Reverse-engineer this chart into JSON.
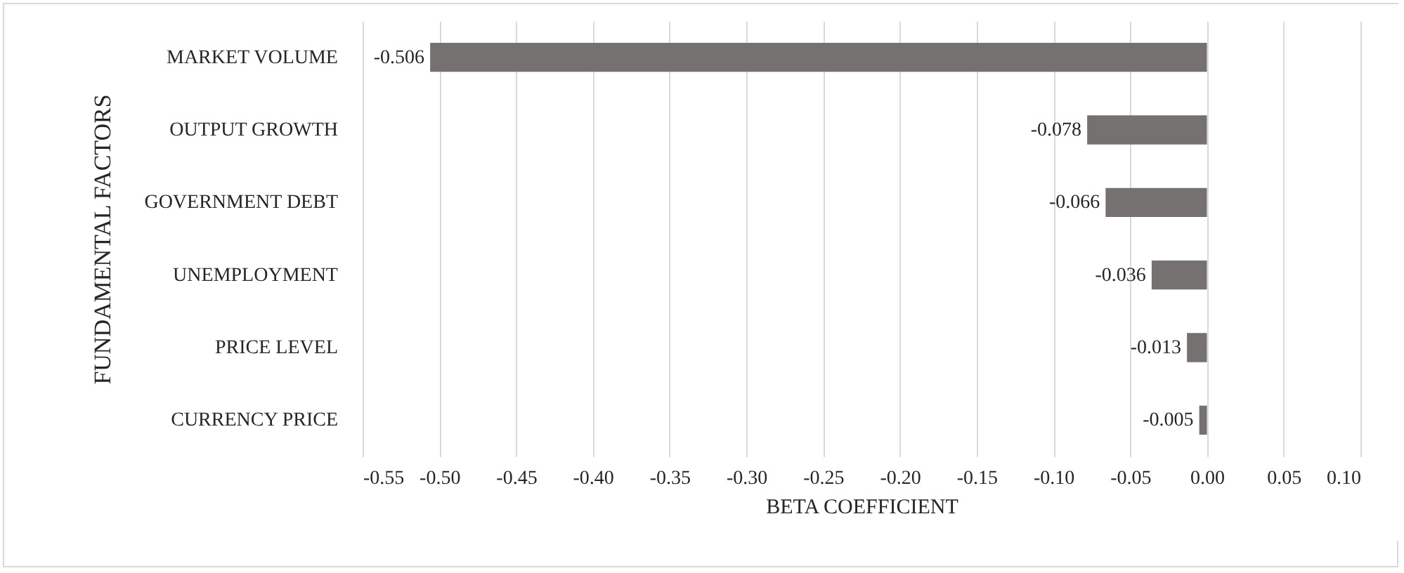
{
  "chart_data": {
    "type": "bar",
    "orientation": "horizontal",
    "xlabel": "BETA COEFFICIENT",
    "ylabel": "FUNDAMENTAL FACTORS",
    "categories": [
      "MARKET VOLUME",
      "OUTPUT GROWTH",
      "GOVERNMENT DEBT",
      "UNEMPLOYMENT",
      "PRICE LEVEL",
      "CURRENCY PRICE"
    ],
    "values": [
      -0.506,
      -0.078,
      -0.066,
      -0.036,
      -0.013,
      -0.005
    ],
    "color": "#767171",
    "data_labels": true,
    "grid": "x",
    "xlim": [
      -0.55,
      0.1
    ],
    "xticks": [
      {
        "value": -0.55,
        "label": "-0.55"
      },
      {
        "value": -0.5,
        "label": "-0.50"
      },
      {
        "value": -0.45,
        "label": "-0.45"
      },
      {
        "value": -0.4,
        "label": "-0.40"
      },
      {
        "value": -0.35,
        "label": "-0.35"
      },
      {
        "value": -0.3,
        "label": "-0.30"
      },
      {
        "value": -0.25,
        "label": "-0.25"
      },
      {
        "value": -0.2,
        "label": "-0.20"
      },
      {
        "value": -0.15,
        "label": "-0.15"
      },
      {
        "value": -0.1,
        "label": "-0.10"
      },
      {
        "value": -0.05,
        "label": "-0.05"
      },
      {
        "value": 0,
        "label": "0.00"
      },
      {
        "value": 0.05,
        "label": "0.05"
      },
      {
        "value": 0.1,
        "label": "0.10"
      }
    ]
  }
}
